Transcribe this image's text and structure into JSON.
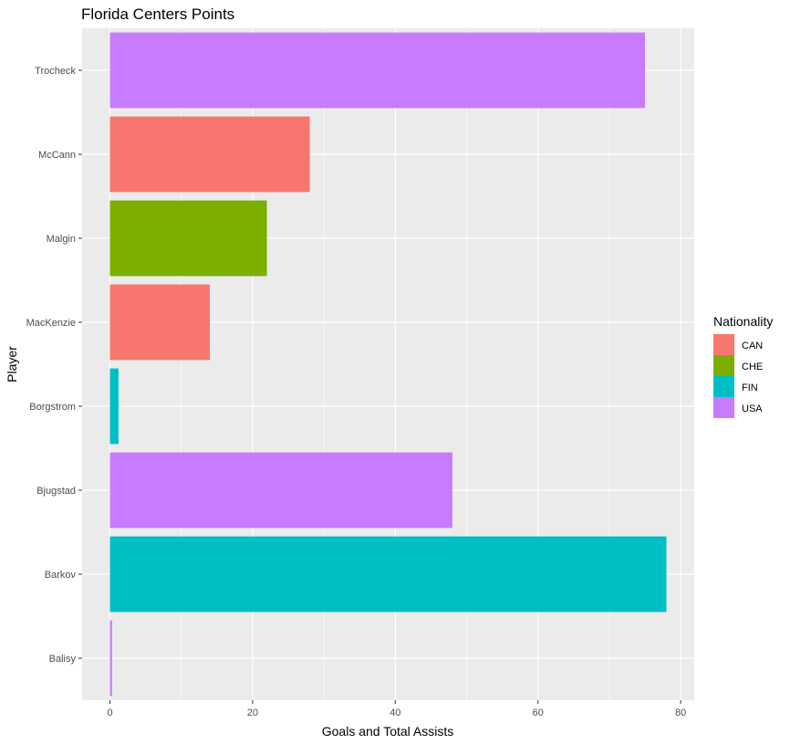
{
  "chart_data": {
    "type": "bar",
    "orientation": "horizontal",
    "title": "Florida Centers Points",
    "xlabel": "Goals and Total Assists",
    "ylabel": "Player",
    "xlim": [
      -3.9,
      81.9
    ],
    "xticks": [
      0,
      20,
      40,
      60,
      80
    ],
    "xtick_labels": [
      "0",
      "20",
      "40",
      "60",
      "80"
    ],
    "grid": true,
    "legend": {
      "title": "Nationality",
      "placement": "right",
      "entries": [
        {
          "label": "CAN",
          "color": "#F8766D"
        },
        {
          "label": "CHE",
          "color": "#7CAE00"
        },
        {
          "label": "FIN",
          "color": "#00BFC4"
        },
        {
          "label": "USA",
          "color": "#C77CFF"
        }
      ]
    },
    "bars": [
      {
        "category": "Balisy",
        "value": 0.3,
        "group": "USA"
      },
      {
        "category": "Barkov",
        "value": 78,
        "group": "FIN"
      },
      {
        "category": "Bjugstad",
        "value": 48,
        "group": "USA"
      },
      {
        "category": "Borgstrom",
        "value": 1.2,
        "group": "FIN"
      },
      {
        "category": "MacKenzie",
        "value": 14,
        "group": "CAN"
      },
      {
        "category": "Malgin",
        "value": 22,
        "group": "CHE"
      },
      {
        "category": "McCann",
        "value": 28,
        "group": "CAN"
      },
      {
        "category": "Trocheck",
        "value": 75,
        "group": "USA"
      }
    ]
  }
}
